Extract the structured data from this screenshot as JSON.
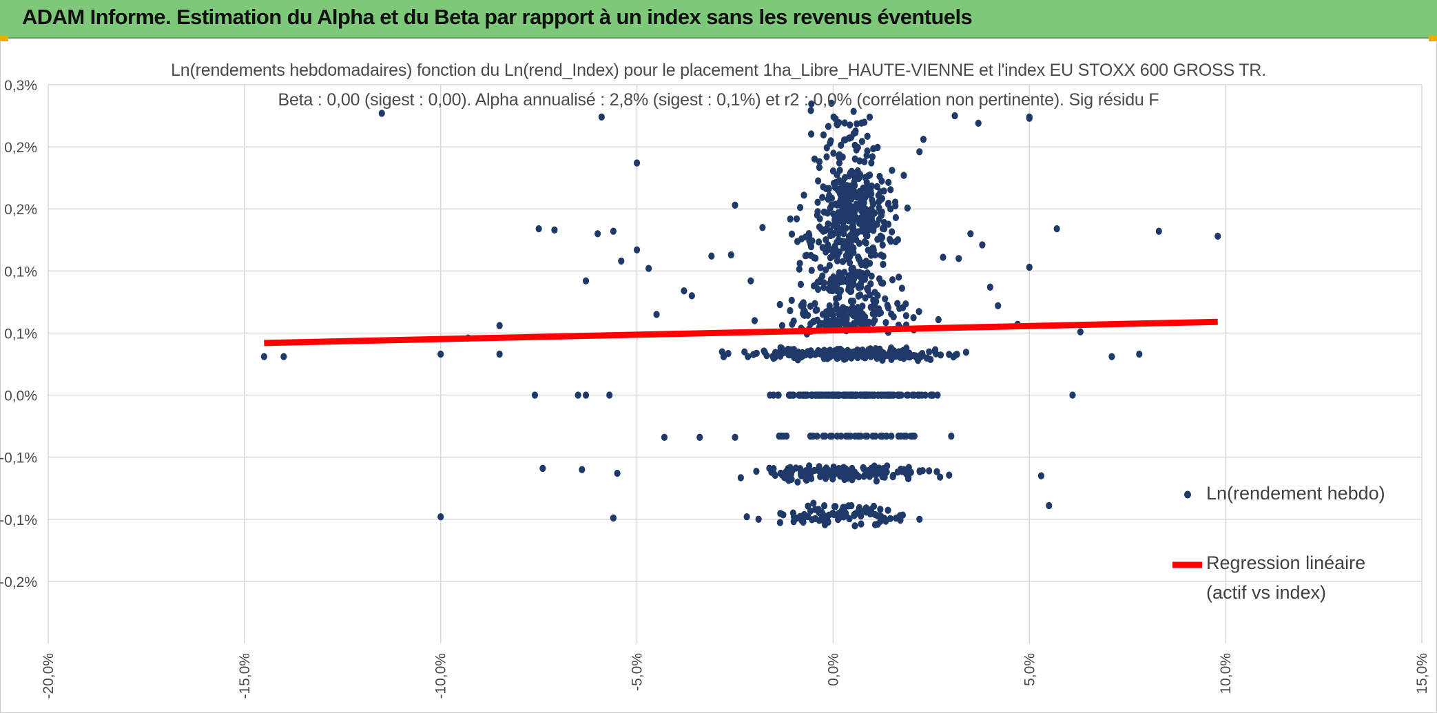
{
  "banner": {
    "title": "ADAM Informe. Estimation du Alpha et du Beta par rapport à un index sans les revenus éventuels"
  },
  "colors": {
    "banner": "#7ec87a",
    "points": "#1f3a68",
    "regression": "#ff0000",
    "grid": "#d9d9d9"
  },
  "chart_data": {
    "type": "scatter",
    "title": "Ln(rendements hebdomadaires) fonction du Ln(rend_Index) pour le placement 1ha_Libre_HAUTE-VIENNE et l'index EU STOXX 600 GROSS TR.",
    "subtitle": "Beta : 0,00 (sigest : 0,00). Alpha annualisé : 2,8% (sigest : 0,1%) et r2 : 0,0% (corrélation non pertinente). Sig résidu F",
    "xlim": [
      -0.2,
      0.15
    ],
    "ylim": [
      -0.002,
      0.0025
    ],
    "x_ticks": [
      {
        "v": -0.2,
        "label": "-20,0%"
      },
      {
        "v": -0.15,
        "label": "-15,0%"
      },
      {
        "v": -0.1,
        "label": "-10,0%"
      },
      {
        "v": -0.05,
        "label": "-5,0%"
      },
      {
        "v": 0.0,
        "label": "0,0%"
      },
      {
        "v": 0.05,
        "label": "5,0%"
      },
      {
        "v": 0.1,
        "label": "10,0%"
      },
      {
        "v": 0.15,
        "label": "15,0%"
      }
    ],
    "y_ticks": [
      {
        "v": 0.0025,
        "label": "0,3%"
      },
      {
        "v": 0.002,
        "label": "0,2%"
      },
      {
        "v": 0.0015,
        "label": "0,2%"
      },
      {
        "v": 0.001,
        "label": "0,1%"
      },
      {
        "v": 0.0005,
        "label": "0,1%"
      },
      {
        "v": 0.0,
        "label": "0,0%"
      },
      {
        "v": -0.0005,
        "label": "-0,1%"
      },
      {
        "v": -0.001,
        "label": "-0,1%"
      },
      {
        "v": -0.0015,
        "label": "-0,2%"
      }
    ],
    "grid": true,
    "legend_position": "right",
    "series": [
      {
        "name": "Ln(rendement hebdo)",
        "kind": "points",
        "points": [
          [
            -0.145,
            0.00031
          ],
          [
            -0.14,
            0.00031
          ],
          [
            -0.1,
            0.00033
          ],
          [
            -0.093,
            0.00046
          ],
          [
            -0.085,
            0.00056
          ],
          [
            -0.085,
            0.00033
          ],
          [
            -0.115,
            0.00227
          ],
          [
            -0.059,
            0.00224
          ],
          [
            -0.05,
            0.00187
          ],
          [
            -0.075,
            0.00134
          ],
          [
            -0.071,
            0.00133
          ],
          [
            -0.06,
            0.0013
          ],
          [
            -0.056,
            0.00132
          ],
          [
            -0.054,
            0.00108
          ],
          [
            -0.05,
            0.00117
          ],
          [
            -0.047,
            0.00102
          ],
          [
            -0.063,
            0.00092
          ],
          [
            -0.045,
            0.00065
          ],
          [
            -0.038,
            0.00084
          ],
          [
            -0.036,
            0.0008
          ],
          [
            -0.076,
            0.0
          ],
          [
            -0.065,
            0.0
          ],
          [
            -0.063,
            0.0
          ],
          [
            -0.057,
            0.0
          ],
          [
            -0.074,
            -0.00059
          ],
          [
            -0.064,
            -0.0006
          ],
          [
            -0.055,
            -0.00063
          ],
          [
            -0.1,
            -0.00098
          ],
          [
            -0.056,
            -0.00099
          ],
          [
            -0.043,
            -0.00034
          ],
          [
            -0.034,
            -0.00034
          ],
          [
            -0.025,
            -0.00034
          ],
          [
            -0.025,
            0.00153
          ],
          [
            -0.026,
            0.00113
          ],
          [
            -0.018,
            0.00135
          ],
          [
            -0.031,
            0.00112
          ],
          [
            -0.021,
            0.00092
          ],
          [
            -0.02,
            0.0006
          ],
          [
            -0.022,
            -0.00098
          ],
          [
            -0.019,
            -0.001
          ],
          [
            -0.01,
            -0.00098
          ],
          [
            -0.008,
            -0.00101
          ],
          [
            0.012,
            -0.00092
          ],
          [
            0.022,
            -0.001
          ],
          [
            0.023,
            0.00206
          ],
          [
            0.022,
            0.00196
          ],
          [
            0.018,
            0.00177
          ],
          [
            0.015,
            0.00181
          ],
          [
            0.012,
            0.00157
          ],
          [
            0.01,
            0.00192
          ],
          [
            0.028,
            0.00111
          ],
          [
            0.032,
            0.0011
          ],
          [
            0.035,
            0.0013
          ],
          [
            0.038,
            0.00121
          ],
          [
            0.04,
            0.00087
          ],
          [
            0.042,
            0.00072
          ],
          [
            0.047,
            0.00057
          ],
          [
            0.05,
            0.00103
          ],
          [
            0.05,
            0.00224
          ],
          [
            0.053,
            -0.00065
          ],
          [
            0.055,
            -0.00089
          ],
          [
            0.057,
            0.00134
          ],
          [
            0.061,
            0.0
          ],
          [
            0.063,
            0.00051
          ],
          [
            0.071,
            0.00031
          ],
          [
            0.078,
            0.00033
          ],
          [
            0.083,
            0.00132
          ],
          [
            0.098,
            0.00128
          ],
          [
            0.031,
            0.00225
          ],
          [
            0.037,
            0.00219
          ],
          [
            0.05,
            0.00223
          ]
        ],
        "clusters": [
          {
            "x_center": 0.005,
            "x_spread": 0.023,
            "y": 0.00033,
            "y_spread": 2e-05,
            "count": 220
          },
          {
            "x_center": 0.004,
            "x_spread": 0.018,
            "y": 0.0,
            "y_spread": 0.0,
            "count": 160
          },
          {
            "x_center": 0.003,
            "x_spread": 0.02,
            "y": -0.00033,
            "y_spread": 0.0,
            "count": 40
          },
          {
            "x_center": 0.002,
            "x_spread": 0.02,
            "y": -0.00063,
            "y_spread": 3e-05,
            "count": 150
          },
          {
            "x_center": 0.003,
            "x_spread": 0.012,
            "y": -0.00096,
            "y_spread": 5e-05,
            "count": 80
          },
          {
            "x_center": 0.004,
            "x_spread": 0.016,
            "y": 0.00062,
            "y_spread": 7e-05,
            "count": 130
          },
          {
            "x_center": 0.004,
            "x_spread": 0.012,
            "y": 0.0009,
            "y_spread": 9e-05,
            "count": 110
          },
          {
            "x_center": 0.004,
            "x_spread": 0.011,
            "y": 0.00125,
            "y_spread": 0.0001,
            "count": 130
          },
          {
            "x_center": 0.005,
            "x_spread": 0.009,
            "y": 0.00155,
            "y_spread": 0.00013,
            "count": 210
          },
          {
            "x_center": 0.003,
            "x_spread": 0.008,
            "y": 0.00205,
            "y_spread": 0.00015,
            "count": 55
          }
        ]
      },
      {
        "name": "Regression linéaire (actif vs index)",
        "kind": "line",
        "points": [
          [
            -0.145,
            0.00042
          ],
          [
            0.098,
            0.00059
          ]
        ]
      }
    ],
    "legend": {
      "points_label": "Ln(rendement hebdo)",
      "line_label_1": "Regression linéaire",
      "line_label_2": "(actif vs index)"
    }
  }
}
